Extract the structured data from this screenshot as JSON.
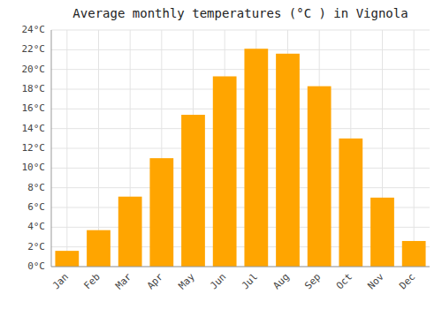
{
  "chart_data": {
    "type": "bar",
    "title": "Average monthly temperatures (°C ) in Vignola",
    "categories": [
      "Jan",
      "Feb",
      "Mar",
      "Apr",
      "May",
      "Jun",
      "Jul",
      "Aug",
      "Sep",
      "Oct",
      "Nov",
      "Dec"
    ],
    "values": [
      1.6,
      3.7,
      7.1,
      11.0,
      15.4,
      19.3,
      22.1,
      21.6,
      18.3,
      13.0,
      7.0,
      2.6
    ],
    "color": "#FFA500",
    "ylim": [
      0,
      24
    ],
    "yticks": [
      {
        "value": 0,
        "label": "0°C"
      },
      {
        "value": 2,
        "label": "2°C"
      },
      {
        "value": 4,
        "label": "4°C"
      },
      {
        "value": 6,
        "label": "6°C"
      },
      {
        "value": 8,
        "label": "8°C"
      },
      {
        "value": 10,
        "label": "10°C"
      },
      {
        "value": 12,
        "label": "12°C"
      },
      {
        "value": 14,
        "label": "14°C"
      },
      {
        "value": 16,
        "label": "16°C"
      },
      {
        "value": 18,
        "label": "18°C"
      },
      {
        "value": 20,
        "label": "20°C"
      },
      {
        "value": 22,
        "label": "22°C"
      },
      {
        "value": 24,
        "label": "24°C"
      }
    ],
    "grid": true
  }
}
